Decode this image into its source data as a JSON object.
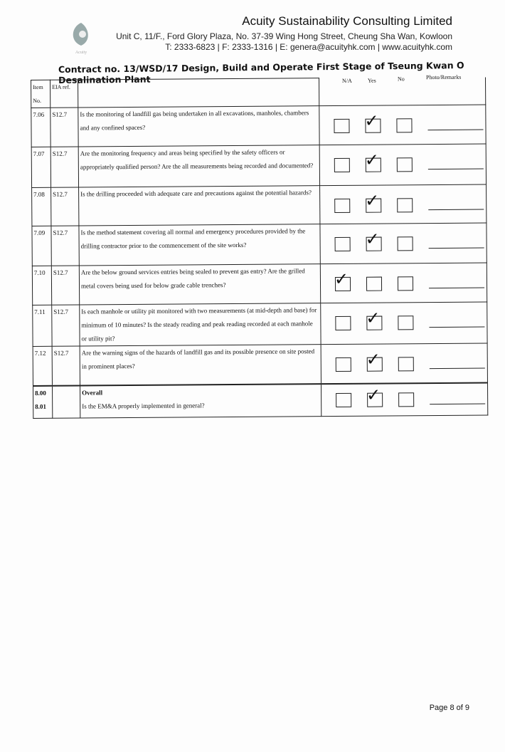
{
  "header": {
    "company": "Acuity Sustainability Consulting Limited",
    "address": "Unit C, 11/F., Ford Glory Plaza, No. 37-39 Wing Hong Street, Cheung Sha Wan, Kowloon",
    "contact": "T: 2333-6823 | F: 2333-1316 | E: genera@acuityhk.com | www.acuityhk.com",
    "logo_text": "Acuity"
  },
  "contract": "Contract no.  13/WSD/17 Design, Build and Operate First Stage of Tseung Kwan O Desalination Plant",
  "columns": {
    "item": "Item No.",
    "eia": "EIA ref.",
    "na": "N/A",
    "yes": "Yes",
    "no": "No",
    "remarks": "Photo/Remarks"
  },
  "rows": [
    {
      "item": "7.06",
      "eia": "S12.7",
      "text": "Is the monitoring of landfill gas being undertaken in all excavations, manholes, chambers and any confined spaces?",
      "checked": "Yes"
    },
    {
      "item": "7.07",
      "eia": "S12.7",
      "text": "Are the monitoring frequency and areas being specified by the safety officers or appropriately qualified person? Are the all measurements being recorded and documented?",
      "checked": "Yes"
    },
    {
      "item": "7.08",
      "eia": "S12.7",
      "text": "Is the drilling proceeded with adequate care and precautions against the potential hazards?",
      "checked": "Yes"
    },
    {
      "item": "7.09",
      "eia": "S12.7",
      "text": "Is the method statement covering all normal and emergency procedures provided by the drilling contractor prior to the commencement of the site works?",
      "checked": "Yes"
    },
    {
      "item": "7.10",
      "eia": "S12.7",
      "text": "Are the below ground services entries being sealed to prevent gas entry? Are the grilled metal covers being used for below grade cable trenches?",
      "checked": "N/A"
    },
    {
      "item": "7.11",
      "eia": "S12.7",
      "text": "Is each manhole or utility pit monitored with two measurements (at mid-depth and base) for minimum of 10 minutes? Is the steady reading and peak reading recorded at each manhole or utility pit?",
      "checked": "Yes"
    },
    {
      "item": "7.12",
      "eia": "S12.7",
      "text": "Are the warning signs of the hazards of landfill gas and its possible presence on site posted in prominent places?",
      "checked": "Yes"
    }
  ],
  "overall": {
    "item": "8.00",
    "item2": "8.01",
    "title": "Overall",
    "text": "Is the EM&A properly implemented in general?",
    "checked": "Yes"
  },
  "footer": {
    "page": "Page 8 of 9"
  }
}
